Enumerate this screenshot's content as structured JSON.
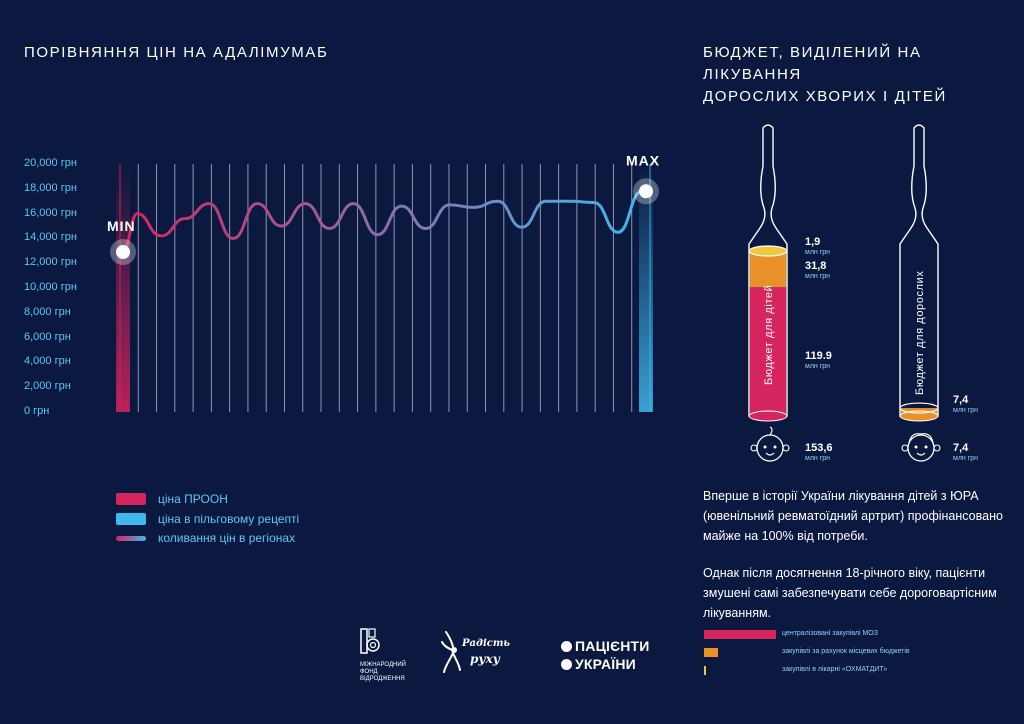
{
  "left_title": "ПОРІВНЯННЯ ЦІН НА АДАЛІМУМАБ",
  "right_title_lines": [
    "БЮДЖЕТ, ВИДІЛЕНИЙ НА ЛІКУВАННЯ",
    "ДОРОСЛИХ ХВОРИХ І ДІТЕЙ"
  ],
  "chart_data": [
    {
      "type": "line",
      "title": "ПОРІВНЯННЯ ЦІН НА АДАЛІМУМАБ",
      "ylim": [
        0,
        20000
      ],
      "y_ticks": [
        "20,000 грн",
        "18,000 грн",
        "16,000 грн",
        "14,000 грн",
        "12,000 грн",
        "10,000 грн",
        "8,000 грн",
        "6,000 грн",
        "4,000 грн",
        "2,000 грн",
        "0 грн"
      ],
      "min_label": "MIN",
      "max_label": "MAX",
      "min_value": 12900,
      "max_value": 17800,
      "regional_prices": [
        16000,
        14200,
        15600,
        16800,
        14000,
        16800,
        15000,
        16800,
        14800,
        16800,
        14300,
        16600,
        14800,
        16700,
        16500,
        17000,
        14900,
        17000,
        17000,
        16900,
        14500,
        17800
      ],
      "legend": [
        {
          "label": "ціна ПРООН",
          "color": "#d6245e"
        },
        {
          "label": "ціна в пільговому рецепті",
          "color": "#3fb9ec"
        },
        {
          "label": "коливання цін в регіонах",
          "gradient": [
            "#d6245e",
            "#3fb9ec"
          ]
        }
      ]
    },
    {
      "type": "bar",
      "title": "БЮДЖЕТ, ВИДІЛЕНИЙ НА ЛІКУВАННЯ ДОРОСЛИХ ХВОРИХ І ДІТЕЙ",
      "unit": "млн грн",
      "categories": [
        "Бюджет для дітей",
        "Бюджет для дорослих"
      ],
      "series": [
        {
          "name": "централізовані закупівлі МОЗ",
          "color": "#d6245e",
          "values": [
            119.9,
            0
          ]
        },
        {
          "name": "закупівлі за рахунок місцевих бюджетів",
          "color": "#e8902a",
          "values": [
            31.8,
            7.4
          ]
        },
        {
          "name": "закупівлі в лікарні «ОХМАТДИТ»",
          "color": "#f0c93a",
          "values": [
            1.9,
            0
          ]
        }
      ],
      "totals": [
        153.6,
        7.4
      ],
      "value_labels": {
        "kids": {
          "ohmatdyt": "1,9",
          "local": "31,8",
          "moz": "119.9",
          "total": "153,6"
        },
        "adults": {
          "local": "7,4",
          "total": "7,4"
        }
      }
    }
  ],
  "unit_label": "млн грн",
  "ampoule_labels": {
    "kids": "Бюджет для дітей",
    "adults": "Бюджет для дорослих"
  },
  "paragraph1": "Вперше в історії України лікування дітей з ЮРА (ювенільний ревматоїдний артрит) профінансовано майже на 100% від потреби.",
  "paragraph2": "Однак після досягнення 18-річного віку, пацієнти змушені самі забезпечувати себе дороговартісним лікуванням.",
  "logos": {
    "irf_lines": [
      "МІЖНАРОДНИЙ",
      "ФОНД",
      "ВІДРОДЖЕННЯ"
    ],
    "radist_lines": [
      "Радість",
      "руху"
    ],
    "patients_lines": [
      "ПАЦІЄНТИ",
      "УКРАЇНИ"
    ]
  }
}
